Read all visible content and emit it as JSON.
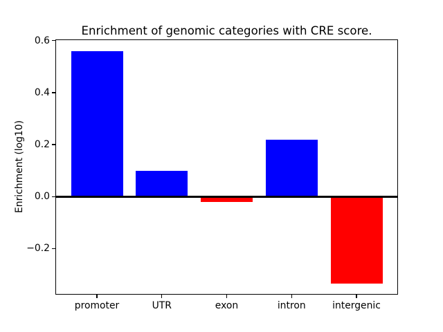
{
  "figure": {
    "background": "#ffffff"
  },
  "chart_data": {
    "type": "bar",
    "title": "Enrichment of genomic categories with CRE score.",
    "ylabel": "Enrichment (log10)",
    "xlabel": "",
    "categories": [
      "promoter",
      "UTR",
      "exon",
      "intron",
      "intergenic"
    ],
    "values": [
      0.56,
      0.1,
      -0.02,
      0.22,
      -0.335
    ],
    "bar_colors": [
      "#0000ff",
      "#0000ff",
      "#ff0000",
      "#0000ff",
      "#ff0000"
    ],
    "positive_color": "#0000ff",
    "negative_color": "#ff0000",
    "yticks": [
      0.6,
      0.4,
      0.2,
      0.0,
      -0.2
    ],
    "ytick_labels": [
      "0.6",
      "0.4",
      "0.2",
      "0.0",
      "−0.2"
    ],
    "ylim": [
      -0.378,
      0.605
    ],
    "bar_width_fraction": 0.8,
    "grid": false,
    "legend": false,
    "zero_line": true,
    "axis_color": "#000000",
    "text_color": "#000000"
  }
}
